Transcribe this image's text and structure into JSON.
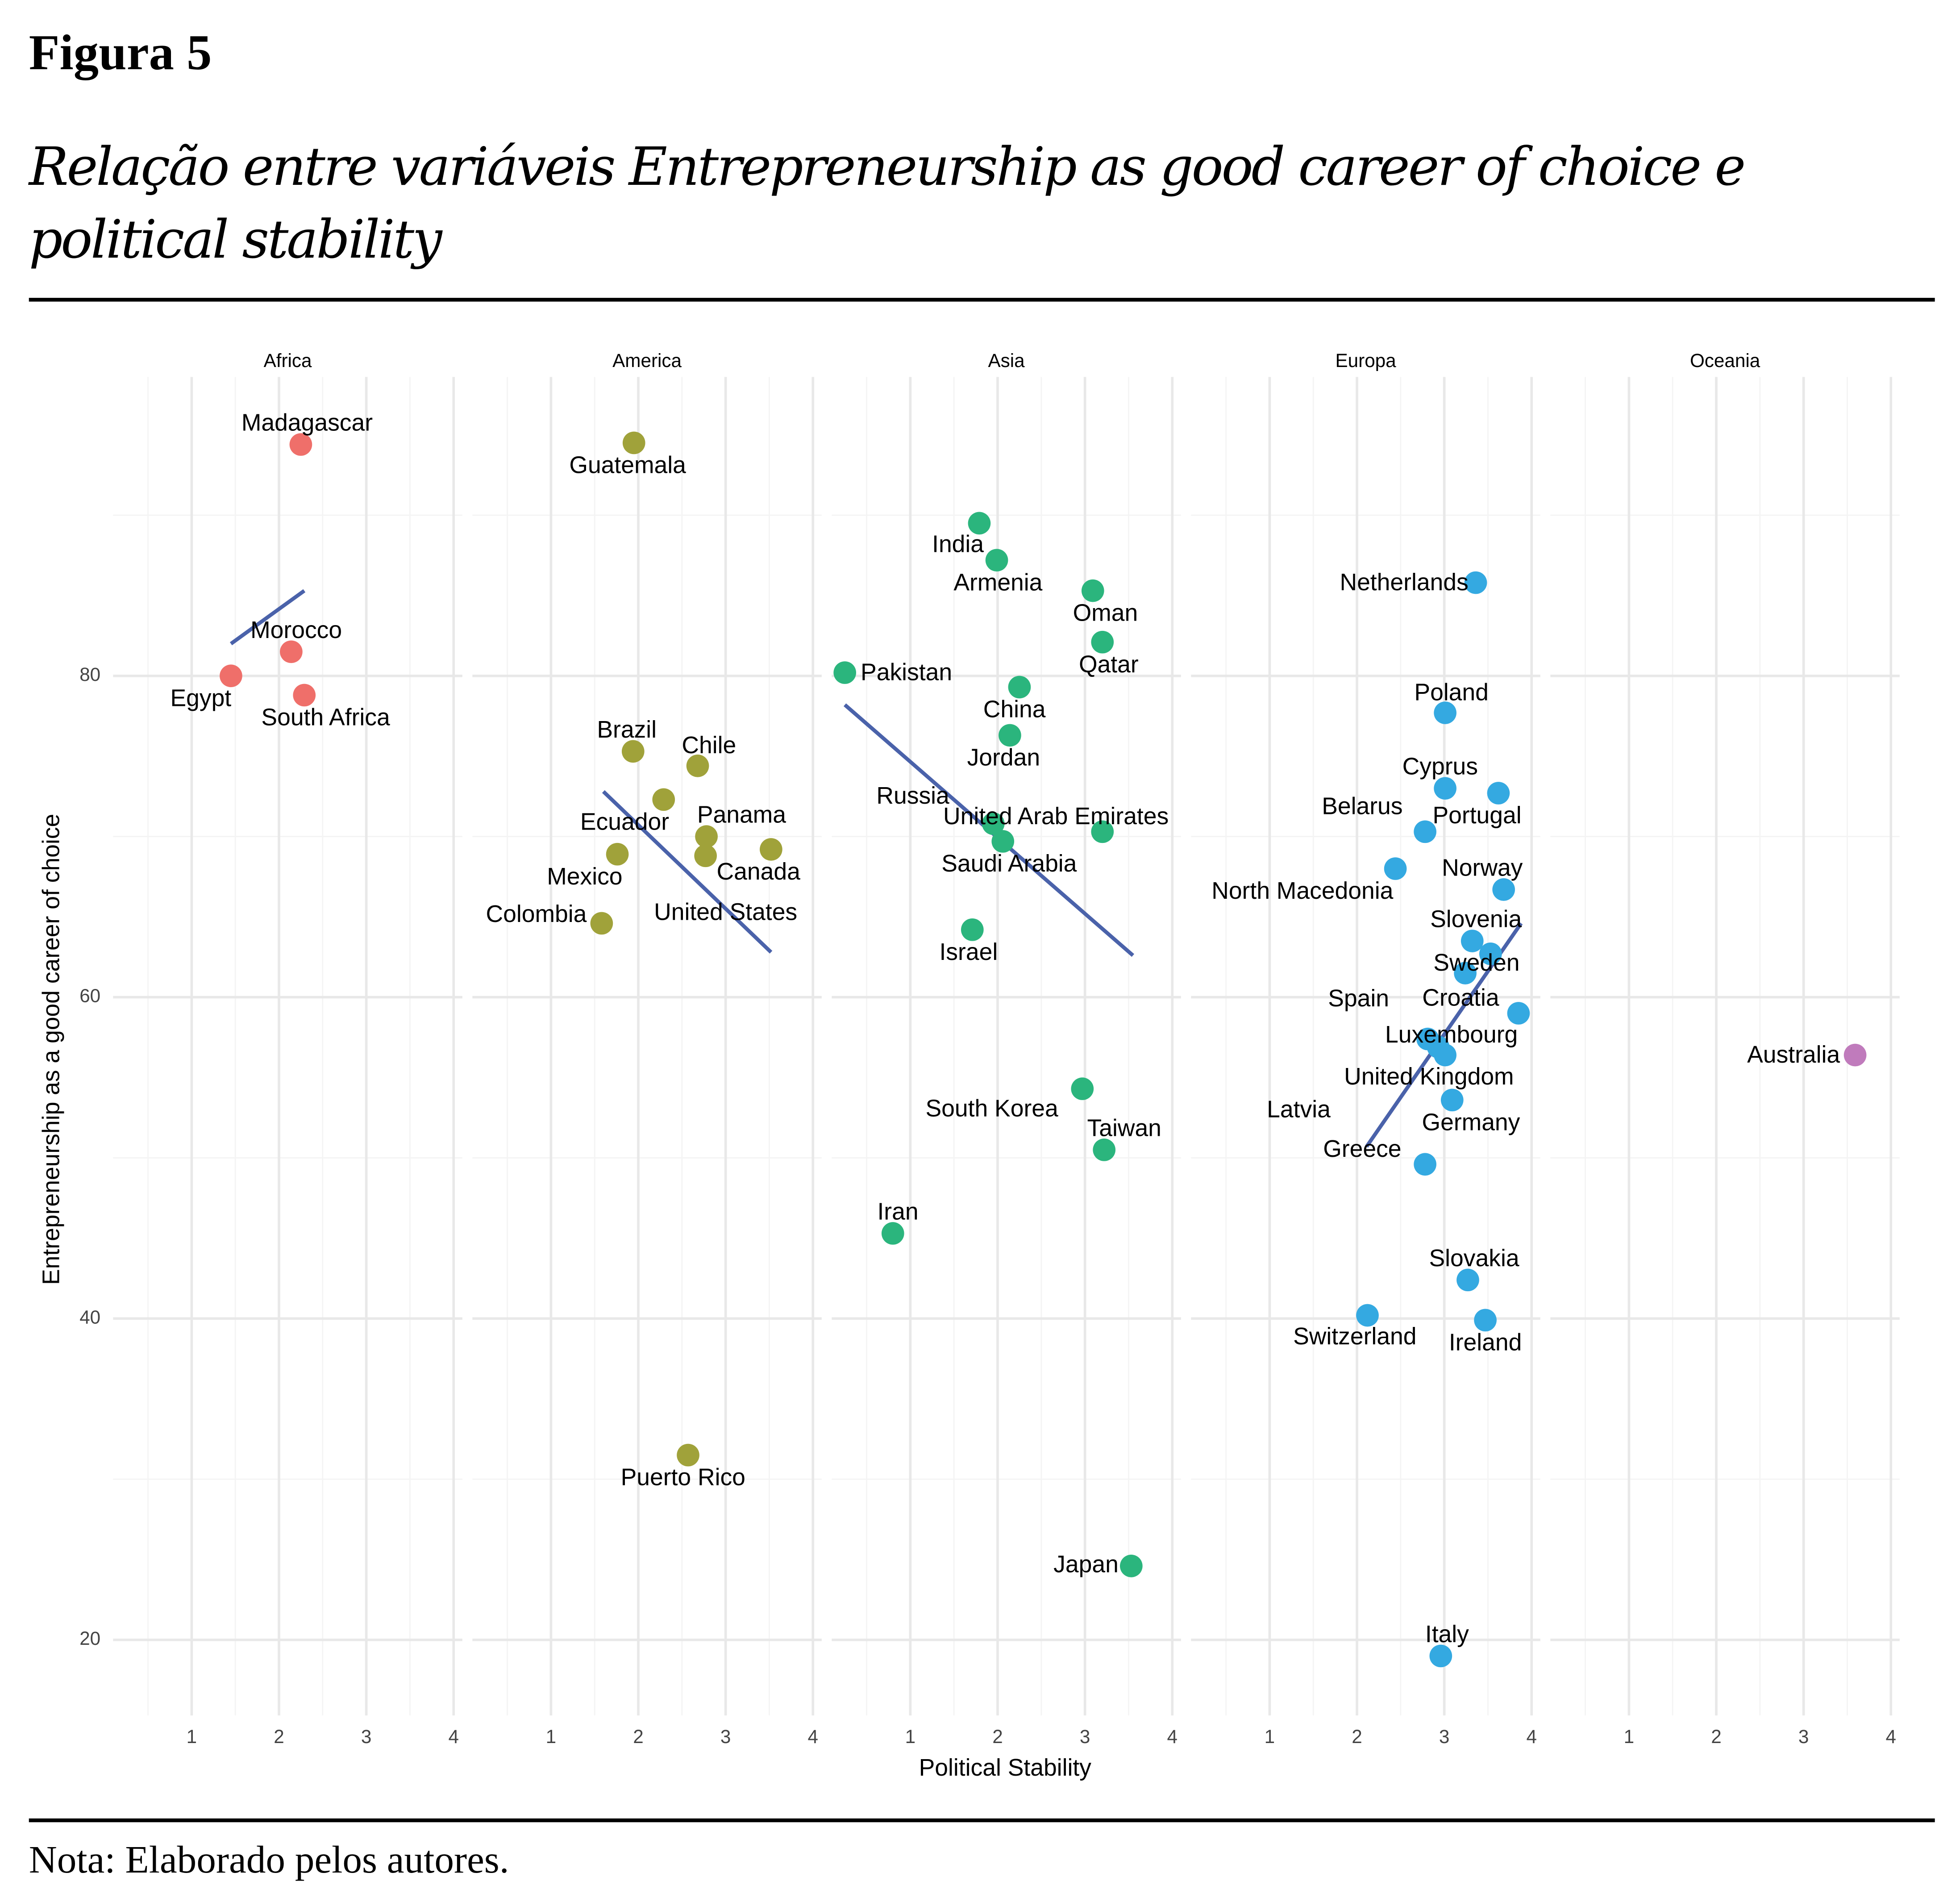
{
  "header": {
    "figure": "Figura 5",
    "title": "Relação entre variáveis Entrepreneurship as good career of choice e political stability"
  },
  "note": "Nota: Elaborado pelos autores.",
  "chart_data": {
    "type": "scatter",
    "xlabel": "Political Stability",
    "ylabel": "Entrepreneurship as a good career of choice",
    "xlim": [
      0.1,
      4.1
    ],
    "xticks": [
      1,
      2,
      3,
      4
    ],
    "xminor": [
      0.5,
      1.5,
      2.5,
      3.5
    ],
    "ylim": [
      15.3,
      98.6
    ],
    "yticks": [
      20,
      40,
      60,
      80
    ],
    "yminor": [
      30,
      50,
      70,
      90
    ],
    "grid": true,
    "facets": [
      {
        "name": "Africa",
        "color": "#ef6f6a",
        "labels": [
          "Madagascar",
          "Morocco",
          "Egypt",
          "South Africa"
        ],
        "x": [
          2.25,
          2.14,
          1.45,
          2.29
        ],
        "y": [
          94.4,
          81.5,
          80.0,
          78.8
        ],
        "trend": {
          "x": [
            1.45,
            2.29
          ],
          "y": [
            82.0,
            85.3
          ]
        }
      },
      {
        "name": "America",
        "color": "#a0a23a",
        "labels": [
          "Guatemala",
          "Brazil",
          "Chile",
          "Ecuador",
          "Panama",
          "Canada",
          "United States",
          "Mexico",
          "Colombia",
          "Puerto Rico"
        ],
        "x": [
          1.95,
          1.94,
          2.68,
          2.29,
          2.78,
          3.52,
          2.77,
          1.76,
          1.58,
          2.57
        ],
        "y": [
          94.5,
          75.3,
          74.4,
          72.3,
          70.0,
          69.2,
          68.8,
          68.9,
          64.6,
          31.5
        ],
        "trend": {
          "x": [
            1.6,
            3.52
          ],
          "y": [
            72.8,
            62.8
          ]
        }
      },
      {
        "name": "Asia",
        "color": "#2bb57d",
        "labels": [
          "India",
          "Armenia",
          "Oman",
          "Qatar",
          "Pakistan",
          "China",
          "Jordan",
          "Russia",
          "United Arab Emirates",
          "Saudi Arabia",
          "Israel",
          "South Korea",
          "Taiwan",
          "Iran",
          "Japan"
        ],
        "x": [
          1.79,
          1.99,
          3.09,
          3.2,
          0.25,
          2.25,
          2.14,
          1.95,
          3.2,
          2.06,
          1.71,
          2.97,
          3.22,
          0.8,
          3.53
        ],
        "y": [
          89.5,
          87.2,
          85.3,
          82.1,
          80.2,
          79.3,
          76.3,
          70.8,
          70.3,
          69.7,
          64.2,
          54.3,
          50.5,
          45.3,
          24.6
        ],
        "trend": {
          "x": [
            0.25,
            3.55
          ],
          "y": [
            78.2,
            62.6
          ]
        }
      },
      {
        "name": "Europa",
        "color": "#34a9e1",
        "labels": [
          "Netherlands",
          "Poland",
          "Cyprus",
          "Portugal",
          "Belarus",
          "North Macedonia",
          "Norway",
          "Slovenia",
          "Sweden",
          "United Kingdom",
          "Croatia",
          "Spain",
          "Luxembourg",
          "Latvia",
          "Germany",
          "Greece",
          "Slovakia",
          "Switzerland",
          "Ireland",
          "Italy"
        ],
        "x": [
          3.36,
          3.01,
          3.01,
          3.62,
          2.78,
          2.44,
          3.68,
          3.32,
          3.24,
          3.53,
          3.85,
          2.81,
          3.01,
          2.93,
          3.09,
          2.78,
          3.27,
          2.12,
          3.47,
          2.96
        ],
        "y": [
          85.8,
          77.7,
          73.0,
          72.7,
          70.3,
          68.0,
          66.7,
          63.5,
          61.5,
          62.7,
          59.0,
          57.4,
          56.4,
          56.9,
          53.6,
          49.6,
          42.4,
          40.2,
          39.9,
          19.0
        ],
        "trend": {
          "x": [
            2.11,
            3.88
          ],
          "y": [
            50.7,
            64.6
          ]
        }
      },
      {
        "name": "Oceania",
        "color": "#c07bbc",
        "labels": [
          "Australia"
        ],
        "x": [
          3.59
        ],
        "y": [
          56.4
        ],
        "trend": null
      }
    ]
  }
}
